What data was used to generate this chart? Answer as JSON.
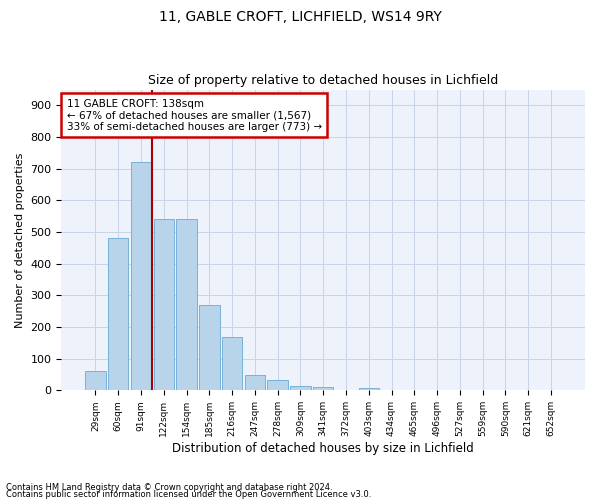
{
  "title_line1": "11, GABLE CROFT, LICHFIELD, WS14 9RY",
  "title_line2": "Size of property relative to detached houses in Lichfield",
  "xlabel": "Distribution of detached houses by size in Lichfield",
  "ylabel": "Number of detached properties",
  "categories": [
    "29sqm",
    "60sqm",
    "91sqm",
    "122sqm",
    "154sqm",
    "185sqm",
    "216sqm",
    "247sqm",
    "278sqm",
    "309sqm",
    "341sqm",
    "372sqm",
    "403sqm",
    "434sqm",
    "465sqm",
    "496sqm",
    "527sqm",
    "559sqm",
    "590sqm",
    "621sqm",
    "652sqm"
  ],
  "values": [
    62,
    480,
    720,
    540,
    540,
    270,
    170,
    48,
    33,
    14,
    12,
    0,
    7,
    0,
    0,
    0,
    0,
    0,
    0,
    0,
    0
  ],
  "bar_color": "#b8d4ea",
  "bar_edge_color": "#6aaad4",
  "annotation_line1": "11 GABLE CROFT: 138sqm",
  "annotation_line2": "← 67% of detached houses are smaller (1,567)",
  "annotation_line3": "33% of semi-detached houses are larger (773) →",
  "vline_color": "#aa0000",
  "vline_x": 2.5,
  "annotation_box_edge_color": "#cc0000",
  "ylim": [
    0,
    950
  ],
  "yticks": [
    0,
    100,
    200,
    300,
    400,
    500,
    600,
    700,
    800,
    900
  ],
  "footnote_line1": "Contains HM Land Registry data © Crown copyright and database right 2024.",
  "footnote_line2": "Contains public sector information licensed under the Open Government Licence v3.0.",
  "bg_color": "#ffffff",
  "plot_bg_color": "#edf2fb",
  "grid_color": "#c8d4e8",
  "title_fontsize": 10,
  "subtitle_fontsize": 9
}
